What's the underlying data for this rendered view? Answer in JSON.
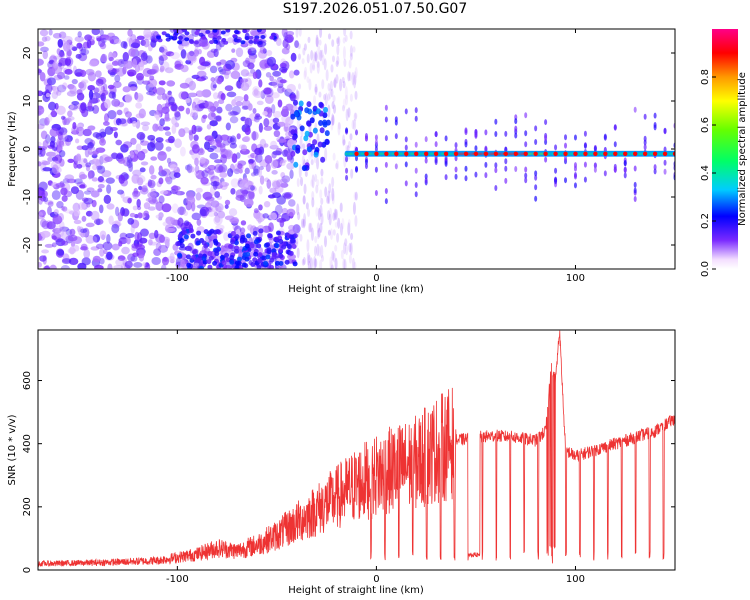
{
  "title": "S197.2026.051.07.50.G07",
  "colors": {
    "snr_line": "#ee3333",
    "axis": "#000000"
  },
  "chart_data": [
    {
      "type": "heatmap",
      "title": "",
      "xlabel": "Height of straight line (km)",
      "ylabel": "Frequency (Hz)",
      "xlim": [
        -170,
        150
      ],
      "ylim": [
        -25,
        25
      ],
      "xticks": [
        "-100",
        "0",
        "100"
      ],
      "yticks": [
        "20",
        "10",
        "0",
        "-10",
        "-20"
      ],
      "colorbar": {
        "label": "Normalized spectral amplitude",
        "range": [
          0,
          1
        ],
        "ticks": [
          "0.0",
          "0.2",
          "0.4",
          "0.6",
          "0.8"
        ],
        "colormap": "rainbow (white→purple→blue→cyan→green→yellow→orange→red→pink)"
      },
      "features": {
        "carrier_frequency_hz": -1,
        "carrier_x_range_km": [
          -15,
          150
        ],
        "peak_amplitude_x_range_km": [
          40,
          75
        ]
      }
    },
    {
      "type": "line",
      "title": "",
      "xlabel": "Height of straight line (km)",
      "ylabel": "SNR (10 * v/v)",
      "xlim": [
        -170,
        150
      ],
      "ylim": [
        0,
        760
      ],
      "xticks": [
        "-100",
        "0",
        "100"
      ],
      "yticks": [
        "0",
        "200",
        "400",
        "600"
      ],
      "series": [
        {
          "x": [
            -170,
            -150,
            -130,
            -110,
            -90,
            -80,
            -70,
            -60,
            -50,
            -40,
            -30,
            -20,
            -10,
            0,
            10,
            20,
            25,
            30,
            40,
            50,
            60,
            70,
            80,
            85,
            88,
            90,
            92,
            95,
            100,
            110,
            120,
            130,
            140,
            150
          ],
          "y": [
            20,
            22,
            25,
            30,
            50,
            70,
            60,
            80,
            110,
            150,
            190,
            230,
            270,
            300,
            320,
            340,
            360,
            380,
            410,
            420,
            425,
            420,
            410,
            440,
            650,
            600,
            760,
            380,
            360,
            380,
            400,
            420,
            440,
            480
          ]
        }
      ]
    }
  ]
}
